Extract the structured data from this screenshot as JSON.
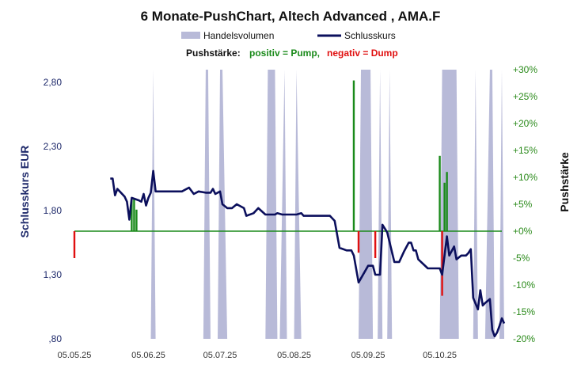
{
  "chart_data": {
    "type": "line",
    "title": "6 Monate-PushChart,  Altech Advanced , AMA.F",
    "legend": {
      "volume_label": "Handelsvolumen",
      "close_label": "Schlusskurs",
      "push_prefix": "Pushstärke:",
      "push_positive": "positiv = Pump,",
      "push_negative": "negativ = Dump"
    },
    "ylabel_left": "Schlusskurs EUR",
    "ylabel_right": "Pushstärke",
    "ylim_left": [
      0.8,
      2.9
    ],
    "ylim_right": [
      -20,
      30
    ],
    "yticks_left": [
      ",80",
      "1,30",
      "1,80",
      "2,30",
      "2,80"
    ],
    "yticks_left_values": [
      0.8,
      1.3,
      1.8,
      2.3,
      2.8
    ],
    "yticks_right": [
      "-20%",
      "-15%",
      "-10%",
      "-5%",
      "+0%",
      "+5%",
      "+10%",
      "+15%",
      "+20%",
      "+25%",
      "+30%"
    ],
    "yticks_right_values": [
      -20,
      -15,
      -10,
      -5,
      0,
      5,
      10,
      15,
      20,
      25,
      30
    ],
    "x_range": [
      "2025-05-05",
      "2025-10-31"
    ],
    "xticks": [
      "05.05.25",
      "05.06.25",
      "05.07.25",
      "05.08.25",
      "05.09.25",
      "05.10.25"
    ],
    "xticks_dates": [
      "2025-05-05",
      "2025-06-05",
      "2025-07-05",
      "2025-08-05",
      "2025-09-05",
      "2025-10-05"
    ],
    "colors": {
      "close": "#0b0f5c",
      "volume": "#b8bad8",
      "pump": "#1a8a1a",
      "dump": "#e01010",
      "zero_line": "#1a8a1a",
      "right_axis": "#2a8a1a",
      "left_axis": "#1f2a6b"
    },
    "series": [
      {
        "name": "Schlusskurs",
        "points": [
          [
            "2025-05-20",
            2.05
          ],
          [
            "2025-05-21",
            2.05
          ],
          [
            "2025-05-22",
            1.92
          ],
          [
            "2025-05-23",
            1.97
          ],
          [
            "2025-05-26",
            1.91
          ],
          [
            "2025-05-27",
            1.87
          ],
          [
            "2025-05-28",
            1.73
          ],
          [
            "2025-05-29",
            1.9
          ],
          [
            "2025-06-01",
            1.88
          ],
          [
            "2025-06-02",
            1.87
          ],
          [
            "2025-06-03",
            1.93
          ],
          [
            "2025-06-04",
            1.84
          ],
          [
            "2025-06-05",
            1.9
          ],
          [
            "2025-06-06",
            1.94
          ],
          [
            "2025-06-07",
            2.11
          ],
          [
            "2025-06-08",
            1.95
          ],
          [
            "2025-06-10",
            1.95
          ],
          [
            "2025-06-15",
            1.95
          ],
          [
            "2025-06-19",
            1.95
          ],
          [
            "2025-06-22",
            1.98
          ],
          [
            "2025-06-24",
            1.93
          ],
          [
            "2025-06-26",
            1.95
          ],
          [
            "2025-06-29",
            1.94
          ],
          [
            "2025-07-01",
            1.94
          ],
          [
            "2025-07-02",
            1.97
          ],
          [
            "2025-07-03",
            1.93
          ],
          [
            "2025-07-05",
            1.95
          ],
          [
            "2025-07-06",
            1.85
          ],
          [
            "2025-07-08",
            1.82
          ],
          [
            "2025-07-10",
            1.82
          ],
          [
            "2025-07-12",
            1.85
          ],
          [
            "2025-07-15",
            1.82
          ],
          [
            "2025-07-16",
            1.76
          ],
          [
            "2025-07-19",
            1.78
          ],
          [
            "2025-07-21",
            1.82
          ],
          [
            "2025-07-24",
            1.77
          ],
          [
            "2025-07-28",
            1.77
          ],
          [
            "2025-07-29",
            1.78
          ],
          [
            "2025-07-31",
            1.77
          ],
          [
            "2025-08-06",
            1.77
          ],
          [
            "2025-08-08",
            1.78
          ],
          [
            "2025-08-09",
            1.76
          ],
          [
            "2025-08-12",
            1.76
          ],
          [
            "2025-08-20",
            1.76
          ],
          [
            "2025-08-22",
            1.72
          ],
          [
            "2025-08-24",
            1.51
          ],
          [
            "2025-08-27",
            1.49
          ],
          [
            "2025-08-29",
            1.49
          ],
          [
            "2025-08-30",
            1.45
          ],
          [
            "2025-09-01",
            1.24
          ],
          [
            "2025-09-05",
            1.37
          ],
          [
            "2025-09-07",
            1.37
          ],
          [
            "2025-09-08",
            1.3
          ],
          [
            "2025-09-10",
            1.3
          ],
          [
            "2025-09-11",
            1.69
          ],
          [
            "2025-09-13",
            1.63
          ],
          [
            "2025-09-16",
            1.4
          ],
          [
            "2025-09-18",
            1.4
          ],
          [
            "2025-09-20",
            1.48
          ],
          [
            "2025-09-22",
            1.55
          ],
          [
            "2025-09-23",
            1.55
          ],
          [
            "2025-09-24",
            1.49
          ],
          [
            "2025-09-25",
            1.49
          ],
          [
            "2025-09-26",
            1.42
          ],
          [
            "2025-09-30",
            1.35
          ],
          [
            "2025-10-02",
            1.35
          ],
          [
            "2025-10-04",
            1.35
          ],
          [
            "2025-10-05",
            1.35
          ],
          [
            "2025-10-06",
            1.3
          ],
          [
            "2025-10-08",
            1.6
          ],
          [
            "2025-10-09",
            1.45
          ],
          [
            "2025-10-11",
            1.52
          ],
          [
            "2025-10-12",
            1.42
          ],
          [
            "2025-10-14",
            1.45
          ],
          [
            "2025-10-16",
            1.45
          ],
          [
            "2025-10-17",
            1.47
          ],
          [
            "2025-10-18",
            1.5
          ],
          [
            "2025-10-19",
            1.12
          ],
          [
            "2025-10-21",
            1.03
          ],
          [
            "2025-10-22",
            1.18
          ],
          [
            "2025-10-23",
            1.06
          ],
          [
            "2025-10-24",
            1.08
          ],
          [
            "2025-10-26",
            1.11
          ],
          [
            "2025-10-27",
            0.87
          ],
          [
            "2025-10-28",
            0.82
          ],
          [
            "2025-10-29",
            0.85
          ],
          [
            "2025-10-30",
            0.9
          ],
          [
            "2025-10-31",
            0.96
          ],
          [
            "2025-11-01",
            0.92
          ]
        ]
      },
      {
        "name": "Handelsvolumen",
        "note_scale": "relative 0-1",
        "bands": [
          [
            "2025-06-06",
            0.0,
            0.3
          ],
          [
            "2025-06-07",
            1.0,
            0.3
          ],
          [
            "2025-06-08",
            0.0,
            0.3
          ],
          [
            "2025-06-28",
            0.0,
            0.3
          ],
          [
            "2025-06-29",
            1.0,
            0.3
          ],
          [
            "2025-06-30",
            1.0,
            0.3
          ],
          [
            "2025-07-01",
            0.0,
            0.3
          ],
          [
            "2025-07-04",
            0.0,
            0.3
          ],
          [
            "2025-07-05",
            1.0,
            0.3
          ],
          [
            "2025-07-06",
            1.0,
            0.3
          ],
          [
            "2025-07-08",
            0.0,
            0.3
          ],
          [
            "2025-07-24",
            0.0,
            0.3
          ],
          [
            "2025-07-25",
            1.0,
            0.3
          ],
          [
            "2025-07-28",
            1.0,
            0.3
          ],
          [
            "2025-07-29",
            0.0,
            0.3
          ],
          [
            "2025-07-30",
            0.0,
            0.3
          ],
          [
            "2025-08-01",
            1.0,
            0.3
          ],
          [
            "2025-08-02",
            0.0,
            0.3
          ],
          [
            "2025-08-05",
            0.0,
            0.3
          ],
          [
            "2025-08-06",
            1.0,
            0.3
          ],
          [
            "2025-08-08",
            0.0,
            0.3
          ],
          [
            "2025-09-01",
            0.0,
            0.3
          ],
          [
            "2025-09-02",
            1.0,
            0.3
          ],
          [
            "2025-09-06",
            1.0,
            0.3
          ],
          [
            "2025-09-07",
            0.0,
            0.3
          ],
          [
            "2025-09-09",
            0.0,
            0.3
          ],
          [
            "2025-09-10",
            1.0,
            0.3
          ],
          [
            "2025-09-11",
            0.0,
            0.3
          ],
          [
            "2025-09-13",
            0.0,
            0.3
          ],
          [
            "2025-09-14",
            1.0,
            0.3
          ],
          [
            "2025-09-15",
            0.0,
            0.3
          ],
          [
            "2025-10-05",
            0.0,
            0.3
          ],
          [
            "2025-10-06",
            1.0,
            0.3
          ],
          [
            "2025-10-12",
            1.0,
            0.3
          ],
          [
            "2025-10-13",
            0.0,
            0.3
          ],
          [
            "2025-10-19",
            0.0,
            0.3
          ],
          [
            "2025-10-20",
            1.0,
            0.3
          ],
          [
            "2025-10-21",
            0.0,
            0.3
          ],
          [
            "2025-10-24",
            0.0,
            0.3
          ],
          [
            "2025-10-26",
            1.0,
            0.3
          ],
          [
            "2025-10-27",
            1.0,
            0.3
          ],
          [
            "2025-10-28",
            0.0,
            0.3
          ],
          [
            "2025-10-30",
            0.0,
            0.3
          ],
          [
            "2025-10-31",
            1.0,
            0.3
          ],
          [
            "2025-11-01",
            0.0,
            0.3
          ]
        ]
      },
      {
        "name": "Pushstärke",
        "points": [
          [
            "2025-05-05",
            -5
          ],
          [
            "2025-05-29",
            6
          ],
          [
            "2025-05-30",
            6
          ],
          [
            "2025-05-31",
            4
          ],
          [
            "2025-08-30",
            28
          ],
          [
            "2025-09-01",
            -4
          ],
          [
            "2025-09-08",
            -5
          ],
          [
            "2025-10-05",
            14
          ],
          [
            "2025-10-06",
            -12
          ],
          [
            "2025-10-07",
            9
          ],
          [
            "2025-10-08",
            11
          ]
        ]
      }
    ],
    "grid": false,
    "legend_position": "top"
  }
}
